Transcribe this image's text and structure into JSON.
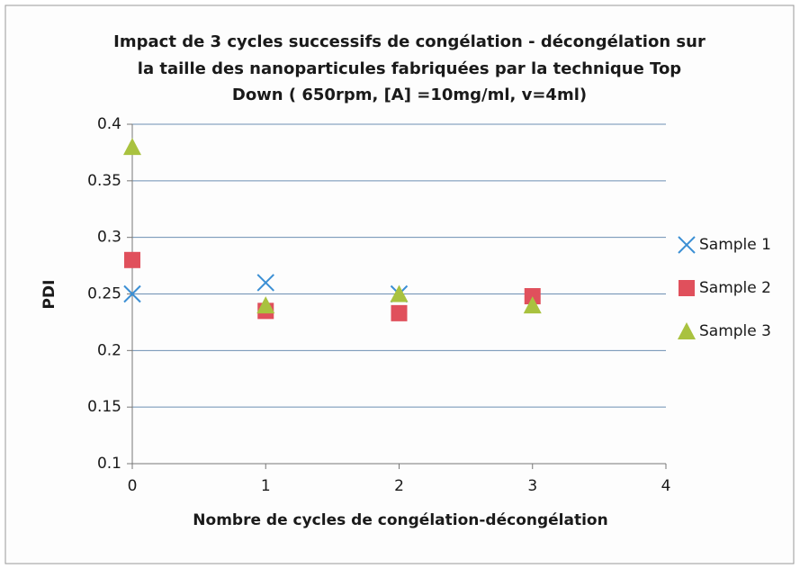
{
  "chart_data": {
    "type": "scatter",
    "title": [
      "Impact de 3 cycles successifs de congélation - décongélation sur",
      "la taille des nanoparticules fabriquées par la technique Top",
      "Down        ( 650rpm, [A] =10mg/ml, v=4ml)"
    ],
    "xlabel": "Nombre de cycles de congélation-décongélation",
    "ylabel": "PDI",
    "xlim": [
      0,
      4
    ],
    "xticks": [
      0,
      1,
      2,
      3,
      4
    ],
    "ylim": [
      0.1,
      0.4
    ],
    "yticks": [
      0.1,
      0.15,
      0.2,
      0.25,
      0.3,
      0.35,
      0.4
    ],
    "grid": true,
    "legend": "right",
    "series": [
      {
        "name": "Sample 1",
        "color": "#3b8fd4",
        "marker": "x",
        "x": [
          0,
          1,
          2
        ],
        "values": [
          0.25,
          0.26,
          0.25
        ]
      },
      {
        "name": "Sample 2",
        "color": "#e0505c",
        "marker": "square",
        "x": [
          0,
          1,
          2,
          3
        ],
        "values": [
          0.28,
          0.235,
          0.233,
          0.248
        ]
      },
      {
        "name": "Sample 3",
        "color": "#a9c23f",
        "marker": "triangle",
        "x": [
          0,
          1,
          2,
          3
        ],
        "values": [
          0.38,
          0.24,
          0.25,
          0.24
        ]
      }
    ]
  }
}
